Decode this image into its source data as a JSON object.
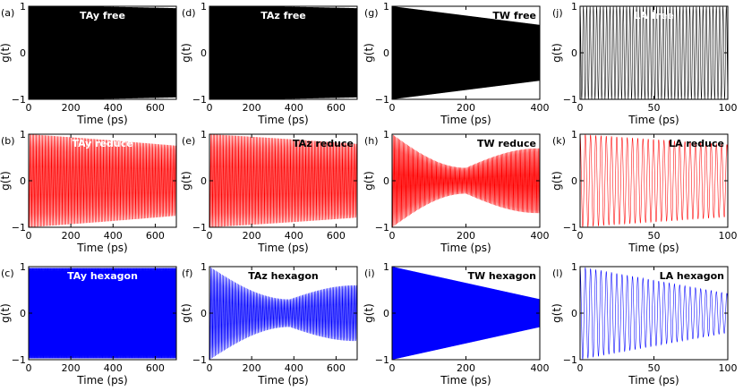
{
  "chart_data": [
    {
      "id": "a",
      "type": "line",
      "panel_label": "(a)",
      "title": "TAy free",
      "title_color": "#ffffff",
      "title_pos": "center",
      "series_color": "#000000",
      "x_max": 700,
      "x_ticks": [
        0,
        200,
        400,
        600
      ],
      "tick_labels": [
        "0",
        "200",
        "400",
        "600"
      ],
      "period": 1.9,
      "env_type": "const",
      "env": [
        1.0
      ],
      "xlabel": "Time (ps)",
      "ylabel": "g(t)",
      "y_ticks": [
        -1,
        0,
        1
      ],
      "y_tick_labels": [
        "−1",
        "0",
        "1"
      ],
      "ylim": [
        -1,
        1
      ]
    },
    {
      "id": "d",
      "type": "line",
      "panel_label": "(d)",
      "title": "TAz free",
      "title_color": "#ffffff",
      "title_pos": "center",
      "series_color": "#000000",
      "x_max": 700,
      "x_ticks": [
        0,
        200,
        400,
        600
      ],
      "tick_labels": [
        "0",
        "200",
        "400",
        "600"
      ],
      "period": 1.9,
      "env_type": "const",
      "env": [
        1.0
      ],
      "xlabel": "Time (ps)",
      "ylabel": "g(t)",
      "y_ticks": [
        -1,
        0,
        1
      ],
      "y_tick_labels": [
        "−1",
        "0",
        "1"
      ],
      "ylim": [
        -1,
        1
      ]
    },
    {
      "id": "g",
      "type": "line",
      "panel_label": "(g)",
      "title": "TW free",
      "title_color": "#000000",
      "title_pos": "right",
      "series_color": "#000000",
      "x_max": 400,
      "x_ticks": [
        0,
        200,
        400
      ],
      "tick_labels": [
        "0",
        "200",
        "400"
      ],
      "period": 1.0,
      "env_type": "decay",
      "env": [
        1.0,
        0.6
      ],
      "xlabel": "Time (ps)",
      "ylabel": "g(t)",
      "y_ticks": [
        -1,
        0,
        1
      ],
      "y_tick_labels": [
        "−1",
        "0",
        "1"
      ],
      "ylim": [
        -1,
        1
      ]
    },
    {
      "id": "j",
      "type": "line",
      "panel_label": "(j)",
      "title": "LA free",
      "title_color": "#ffffff",
      "title_pos": "center",
      "series_color": "#000000",
      "x_max": 100,
      "x_ticks": [
        0,
        50,
        100
      ],
      "tick_labels": [
        "0",
        "50",
        "100"
      ],
      "period": 2.25,
      "env_type": "const",
      "env": [
        1.0
      ],
      "xlabel": "Time (ps)",
      "ylabel": "g(t)",
      "y_ticks": [
        -1,
        0,
        1
      ],
      "y_tick_labels": [
        "−1",
        "0",
        "1"
      ],
      "ylim": [
        -1,
        1
      ]
    },
    {
      "id": "b",
      "type": "line",
      "panel_label": "(b)",
      "title": "TAy reduce",
      "title_color": "#ffffff",
      "title_pos": "center",
      "series_color": "#ff0000",
      "x_max": 700,
      "x_ticks": [
        0,
        200,
        400,
        600
      ],
      "tick_labels": [
        "0",
        "200",
        "400",
        "600"
      ],
      "period": 6.0,
      "env_type": "decay",
      "env": [
        1.0,
        0.78
      ],
      "xlabel": "Time (ps)",
      "ylabel": "g(t)",
      "y_ticks": [
        -1,
        0,
        1
      ],
      "y_tick_labels": [
        "−1",
        "0",
        "1"
      ],
      "ylim": [
        -1,
        1
      ]
    },
    {
      "id": "e",
      "type": "line",
      "panel_label": "(e)",
      "title": "TAz reduce",
      "title_color": "#000000",
      "title_pos": "right",
      "series_color": "#ff0000",
      "x_max": 700,
      "x_ticks": [
        0,
        200,
        400,
        600
      ],
      "tick_labels": [
        "0",
        "200",
        "400",
        "600"
      ],
      "period": 6.0,
      "env_type": "decay",
      "env": [
        1.0,
        0.82
      ],
      "xlabel": "Time (ps)",
      "ylabel": "g(t)",
      "y_ticks": [
        -1,
        0,
        1
      ],
      "y_tick_labels": [
        "−1",
        "0",
        "1"
      ],
      "ylim": [
        -1,
        1
      ]
    },
    {
      "id": "h",
      "type": "line",
      "panel_label": "(h)",
      "title": "TW reduce",
      "title_color": "#000000",
      "title_pos": "right",
      "series_color": "#ff0000",
      "x_max": 400,
      "x_ticks": [
        0,
        200,
        400
      ],
      "tick_labels": [
        "0",
        "200",
        "400"
      ],
      "period": 3.0,
      "env_type": "beat",
      "env": [
        1.0,
        0.72,
        0.28,
        200
      ],
      "xlabel": "Time (ps)",
      "ylabel": "g(t)",
      "y_ticks": [
        -1,
        0,
        1
      ],
      "y_tick_labels": [
        "−1",
        "0",
        "1"
      ],
      "ylim": [
        -1,
        1
      ]
    },
    {
      "id": "k",
      "type": "line",
      "panel_label": "(k)",
      "title": "LA reduce",
      "title_color": "#000000",
      "title_pos": "right",
      "series_color": "#ff0000",
      "x_max": 100,
      "x_ticks": [
        0,
        50,
        100
      ],
      "tick_labels": [
        "0",
        "50",
        "100"
      ],
      "period": 3.55,
      "env_type": "decay",
      "env": [
        1.0,
        0.78
      ],
      "xlabel": "Time (ps)",
      "ylabel": "g(t)",
      "y_ticks": [
        -1,
        0,
        1
      ],
      "y_tick_labels": [
        "−1",
        "0",
        "1"
      ],
      "ylim": [
        -1,
        1
      ]
    },
    {
      "id": "c",
      "type": "line",
      "panel_label": "(c)",
      "title": "TAy hexagon",
      "title_color": "#ffffff",
      "title_pos": "center",
      "series_color": "#0000ff",
      "x_max": 700,
      "x_ticks": [
        0,
        200,
        400,
        600
      ],
      "tick_labels": [
        "0",
        "200",
        "400",
        "600"
      ],
      "period": 2.5,
      "env_type": "const",
      "env": [
        0.97
      ],
      "xlabel": "Time (ps)",
      "ylabel": "g(t)",
      "y_ticks": [
        -1,
        0,
        1
      ],
      "y_tick_labels": [
        "−1",
        "0",
        "1"
      ],
      "ylim": [
        -1,
        1
      ]
    },
    {
      "id": "f",
      "type": "line",
      "panel_label": "(f)",
      "title": "TAz hexagon",
      "title_color": "#000000",
      "title_pos": "center",
      "series_color": "#0000ff",
      "x_max": 700,
      "x_ticks": [
        0,
        200,
        400,
        600
      ],
      "tick_labels": [
        "0",
        "200",
        "400",
        "600"
      ],
      "period": 6.0,
      "env_type": "beat",
      "env": [
        1.0,
        0.62,
        0.3,
        380
      ],
      "xlabel": "Time (ps)",
      "ylabel": "g(t)",
      "y_ticks": [
        -1,
        0,
        1
      ],
      "y_tick_labels": [
        "−1",
        "0",
        "1"
      ],
      "ylim": [
        -1,
        1
      ]
    },
    {
      "id": "i",
      "type": "line",
      "panel_label": "(i)",
      "title": "TW hexagon",
      "title_color": "#000000",
      "title_pos": "right",
      "series_color": "#0000ff",
      "x_max": 400,
      "x_ticks": [
        0,
        200,
        400
      ],
      "tick_labels": [
        "0",
        "200",
        "400"
      ],
      "period": 1.0,
      "env_type": "decay",
      "env": [
        1.0,
        0.3
      ],
      "xlabel": "Time (ps)",
      "ylabel": "g(t)",
      "y_ticks": [
        -1,
        0,
        1
      ],
      "y_tick_labels": [
        "−1",
        "0",
        "1"
      ],
      "ylim": [
        -1,
        1
      ]
    },
    {
      "id": "l",
      "type": "line",
      "panel_label": "(l)",
      "title": "LA hexagon",
      "title_color": "#000000",
      "title_pos": "right",
      "series_color": "#0000ff",
      "x_max": 100,
      "x_ticks": [
        0,
        50,
        100
      ],
      "tick_labels": [
        "0",
        "50",
        "100"
      ],
      "period": 3.55,
      "env_type": "decay",
      "env": [
        1.0,
        0.42
      ],
      "xlabel": "Time (ps)",
      "ylabel": "g(t)",
      "y_ticks": [
        -1,
        0,
        1
      ],
      "y_tick_labels": [
        "−1",
        "0",
        "1"
      ],
      "ylim": [
        -1,
        1
      ]
    }
  ]
}
